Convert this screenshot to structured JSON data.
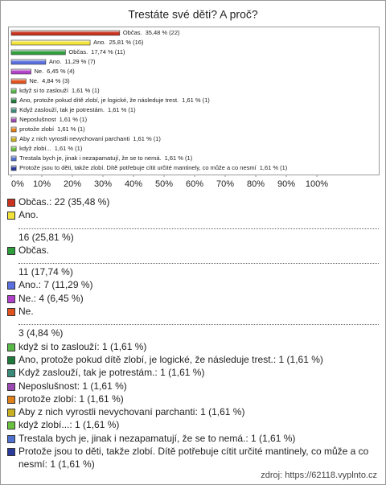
{
  "chart_data": {
    "type": "hbar",
    "title": "Trestáte své děti? A proč?",
    "categories": [
      "Občas.",
      "Ano.",
      "Občas.",
      "Ano.",
      "Ne.",
      "Ne.",
      "když si to zaslouží",
      "Ano, protože pokud dítě zlobí, je logické, že následuje trest.",
      "Když zaslouží, tak je potrestám.",
      "Neposlušnost",
      "protože zlobí",
      "Aby z nich vyrostli nevychovaní parchanti",
      "když zlobí...",
      "Trestala bych je, jinak i nezapamatují, že se to nemá.",
      "Protože jsou to děti, takže zlobí. Dítě potřebuje cítit určité mantinely, co může a co nesmí"
    ],
    "values": [
      35.48,
      25.81,
      17.74,
      11.29,
      6.45,
      4.84,
      1.61,
      1.61,
      1.61,
      1.61,
      1.61,
      1.61,
      1.61,
      1.61,
      1.61
    ],
    "value_labels": [
      "35,48 % (22)",
      "25,81 % (16)",
      "17,74 % (11)",
      "11,29 % (7)",
      "6,45 % (4)",
      "4,84 % (3)",
      "1,61 % (1)",
      "1,61 % (1)",
      "1,61 % (1)",
      "1,61 % (1)",
      "1,61 % (1)",
      "1,61 % (1)",
      "1,61 % (1)",
      "1,61 % (1)",
      "1,61 % (1)"
    ],
    "colors": [
      "#c8321e",
      "#f2e23a",
      "#2e9e3c",
      "#5a6fe0",
      "#b040c8",
      "#e0521e",
      "#58b848",
      "#1e7a3a",
      "#3a8a7a",
      "#9a4ab0",
      "#e0801a",
      "#c8b020",
      "#6ac040",
      "#5070d0",
      "#2a3a9a"
    ],
    "xlim": [
      0,
      100
    ],
    "xticks": [
      {
        "value": 0,
        "label": "0%"
      },
      {
        "value": 10,
        "label": "10%"
      },
      {
        "value": 20,
        "label": "20%"
      },
      {
        "value": 30,
        "label": "30%"
      },
      {
        "value": 40,
        "label": "40%"
      },
      {
        "value": 50,
        "label": "50%"
      },
      {
        "value": 60,
        "label": "60%"
      },
      {
        "value": 70,
        "label": "70%"
      },
      {
        "value": 80,
        "label": "80%"
      },
      {
        "value": 90,
        "label": "90%"
      },
      {
        "value": 100,
        "label": "100%"
      }
    ]
  },
  "list": [
    [
      "Občas.: 22 (35,48 %)"
    ],
    [
      "Ano.",
      "16 (25,81 %)"
    ],
    [
      "Občas.",
      "11 (17,74 %)"
    ],
    [
      "Ano.: 7 (11,29 %)"
    ],
    [
      "Ne.: 4 (6,45 %)"
    ],
    [
      "Ne.",
      "3 (4,84 %)"
    ],
    [
      "když si to zaslouží: 1 (1,61 %)"
    ],
    [
      "Ano, protože pokud dítě zlobí, je logické, že následuje trest.: 1 (1,61 %)"
    ],
    [
      "Když zaslouží, tak je potrestám.: 1 (1,61 %)"
    ],
    [
      "Neposlušnost: 1 (1,61 %)"
    ],
    [
      "protože zlobí: 1 (1,61 %)"
    ],
    [
      "Aby z nich vyrostli nevychovaní parchanti: 1 (1,61 %)"
    ],
    [
      "když zlobí...: 1 (1,61 %)"
    ],
    [
      "Trestala bych je, jinak i nezapamatují, že se to nemá.: 1 (1,61 %)"
    ],
    [
      "Protože jsou to děti, takže zlobí. Dítě potřebuje cítit určité mantinely, co může a co nesmí: 1 (1,61 %)"
    ]
  ],
  "source": "zdroj: https://62118.vyplnto.cz"
}
